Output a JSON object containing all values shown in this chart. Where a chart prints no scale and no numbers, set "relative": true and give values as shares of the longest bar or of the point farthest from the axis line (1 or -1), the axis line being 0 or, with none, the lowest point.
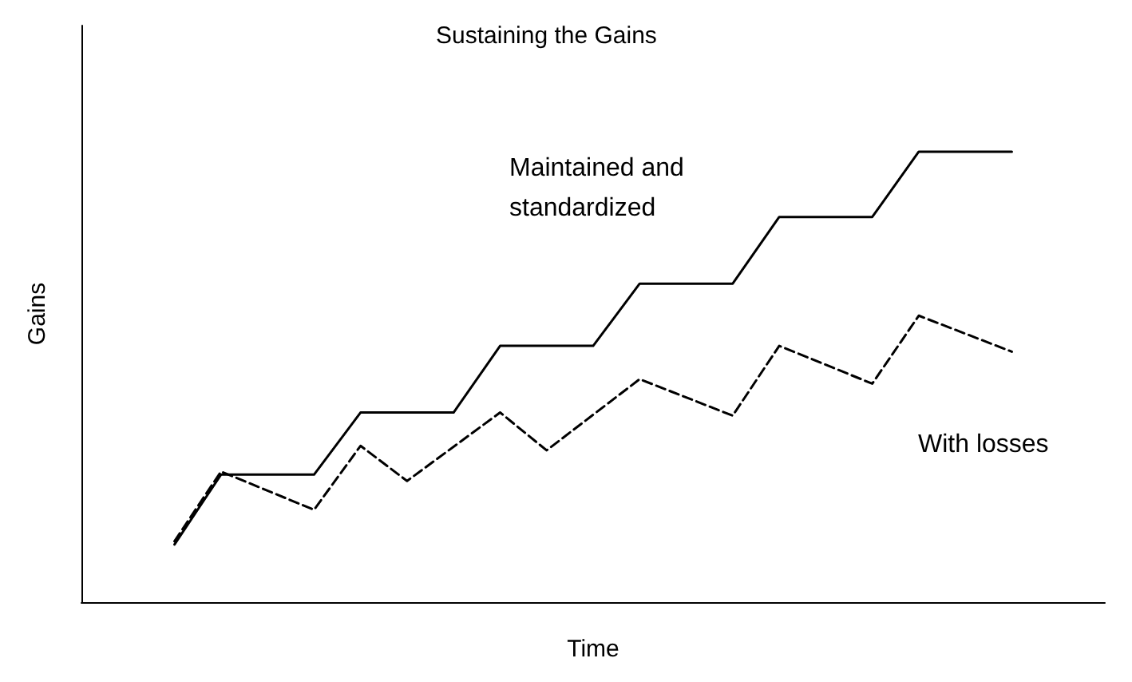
{
  "chart_data": {
    "type": "line",
    "title": "Sustaining the Gains",
    "xlabel": "Time",
    "ylabel": "Gains",
    "relative": true,
    "marker": "none",
    "grid": false,
    "categories": [
      null,
      null,
      null,
      null,
      null,
      null,
      null,
      null,
      null,
      null,
      null,
      null,
      null,
      null,
      null,
      null,
      null,
      null,
      null,
      null,
      null,
      null,
      null
    ],
    "series": [
      {
        "color": "#000000",
        "line_style": "solid",
        "values": [
          null,
          null,
          0.128,
          0.283,
          null,
          0.283,
          0.421,
          null,
          0.421,
          0.569,
          null,
          0.569,
          0.707,
          null,
          0.707,
          0.855,
          null,
          0.855,
          1,
          null,
          1,
          null,
          null
        ]
      },
      {
        "color": "#000000",
        "line_style": "dashed",
        "values": [
          null,
          null,
          0.135,
          0.29,
          null,
          0.205,
          0.347,
          0.269,
          null,
          0.421,
          0.337,
          null,
          0.495,
          null,
          0.414,
          0.569,
          null,
          0.485,
          0.636,
          null,
          0.556,
          null,
          null
        ]
      }
    ],
    "annotations": [
      "Maintained and\nstandardized",
      "With losses"
    ]
  }
}
